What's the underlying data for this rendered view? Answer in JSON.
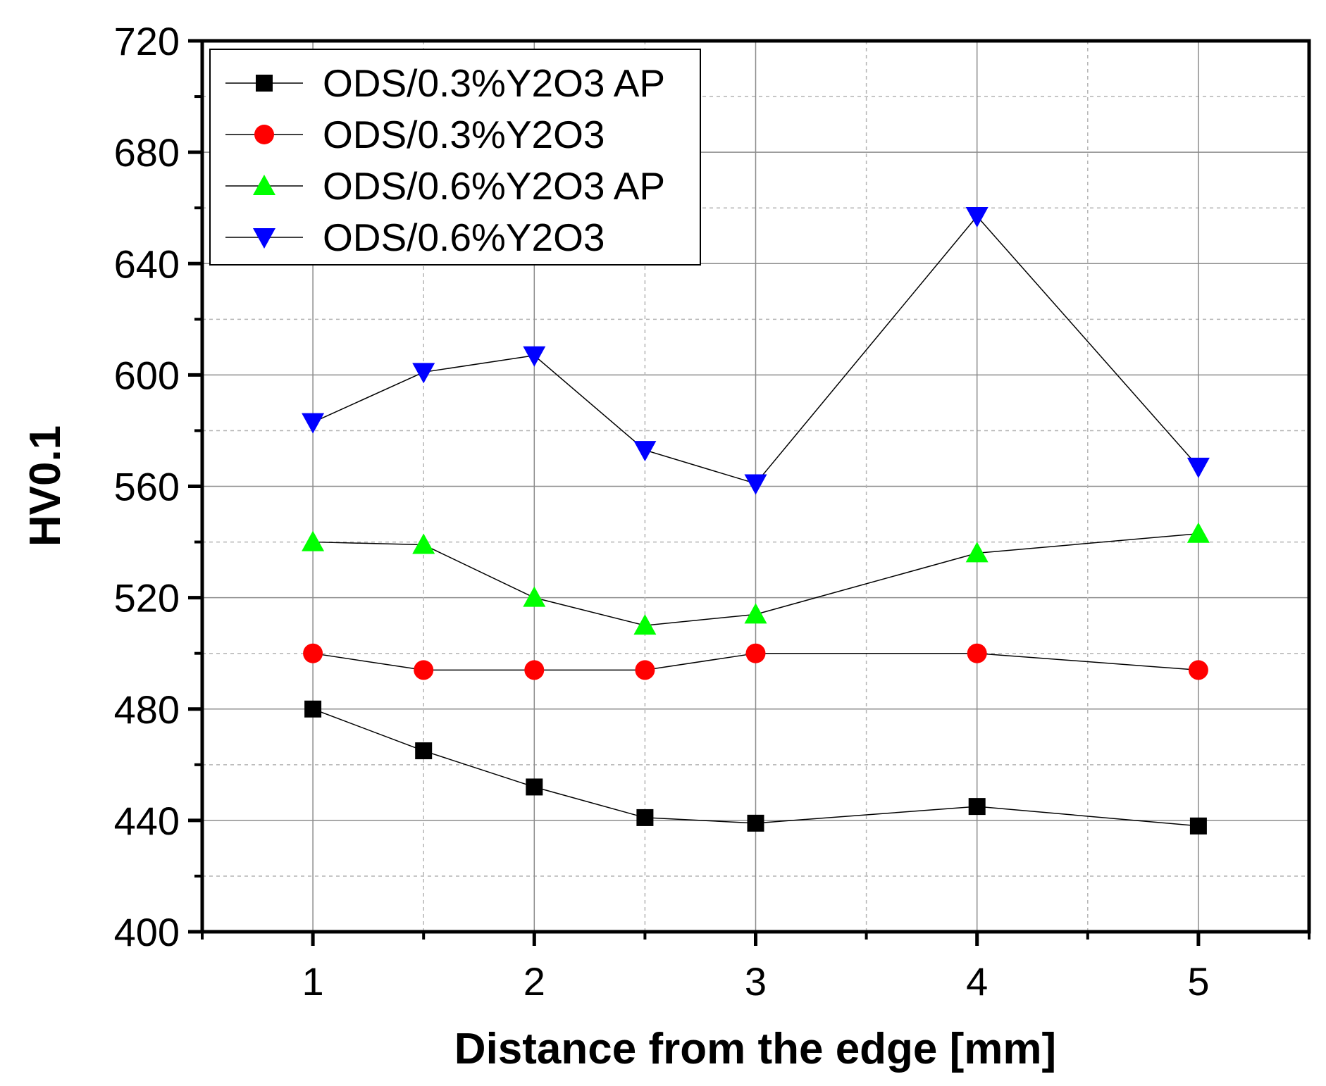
{
  "chart_data": {
    "type": "line",
    "title": "",
    "xlabel": "Distance from the edge [mm]",
    "ylabel": "HV0.1",
    "xlim": [
      0.5,
      5.5
    ],
    "ylim": [
      400,
      720
    ],
    "x_ticks": [
      1,
      2,
      3,
      4,
      5
    ],
    "x_minor_ticks": [
      0.5,
      1.5,
      2.5,
      3.5,
      4.5,
      5.5
    ],
    "y_ticks": [
      400,
      440,
      480,
      520,
      560,
      600,
      640,
      680,
      720
    ],
    "y_minor_ticks": [
      420,
      460,
      500,
      540,
      580,
      620,
      660,
      700
    ],
    "grid": true,
    "legend_position": "top-left",
    "x": [
      1,
      1.5,
      2,
      2.5,
      3,
      4,
      5
    ],
    "series": [
      {
        "name": "ODS/0.3%Y2O3 AP",
        "marker": "square",
        "color": "#000000",
        "values": [
          480,
          465,
          452,
          441,
          439,
          445,
          438
        ]
      },
      {
        "name": "ODS/0.3%Y2O3",
        "marker": "circle",
        "color": "#ff0000",
        "values": [
          500,
          494,
          494,
          494,
          500,
          500,
          494
        ]
      },
      {
        "name": "ODS/0.6%Y2O3 AP",
        "marker": "triangle-up",
        "color": "#00ff00",
        "values": [
          540,
          539,
          520,
          510,
          514,
          536,
          543
        ]
      },
      {
        "name": "ODS/0.6%Y2O3",
        "marker": "triangle-down",
        "color": "#0000ff",
        "values": [
          583,
          601,
          607,
          573,
          561,
          657,
          567
        ]
      }
    ]
  }
}
